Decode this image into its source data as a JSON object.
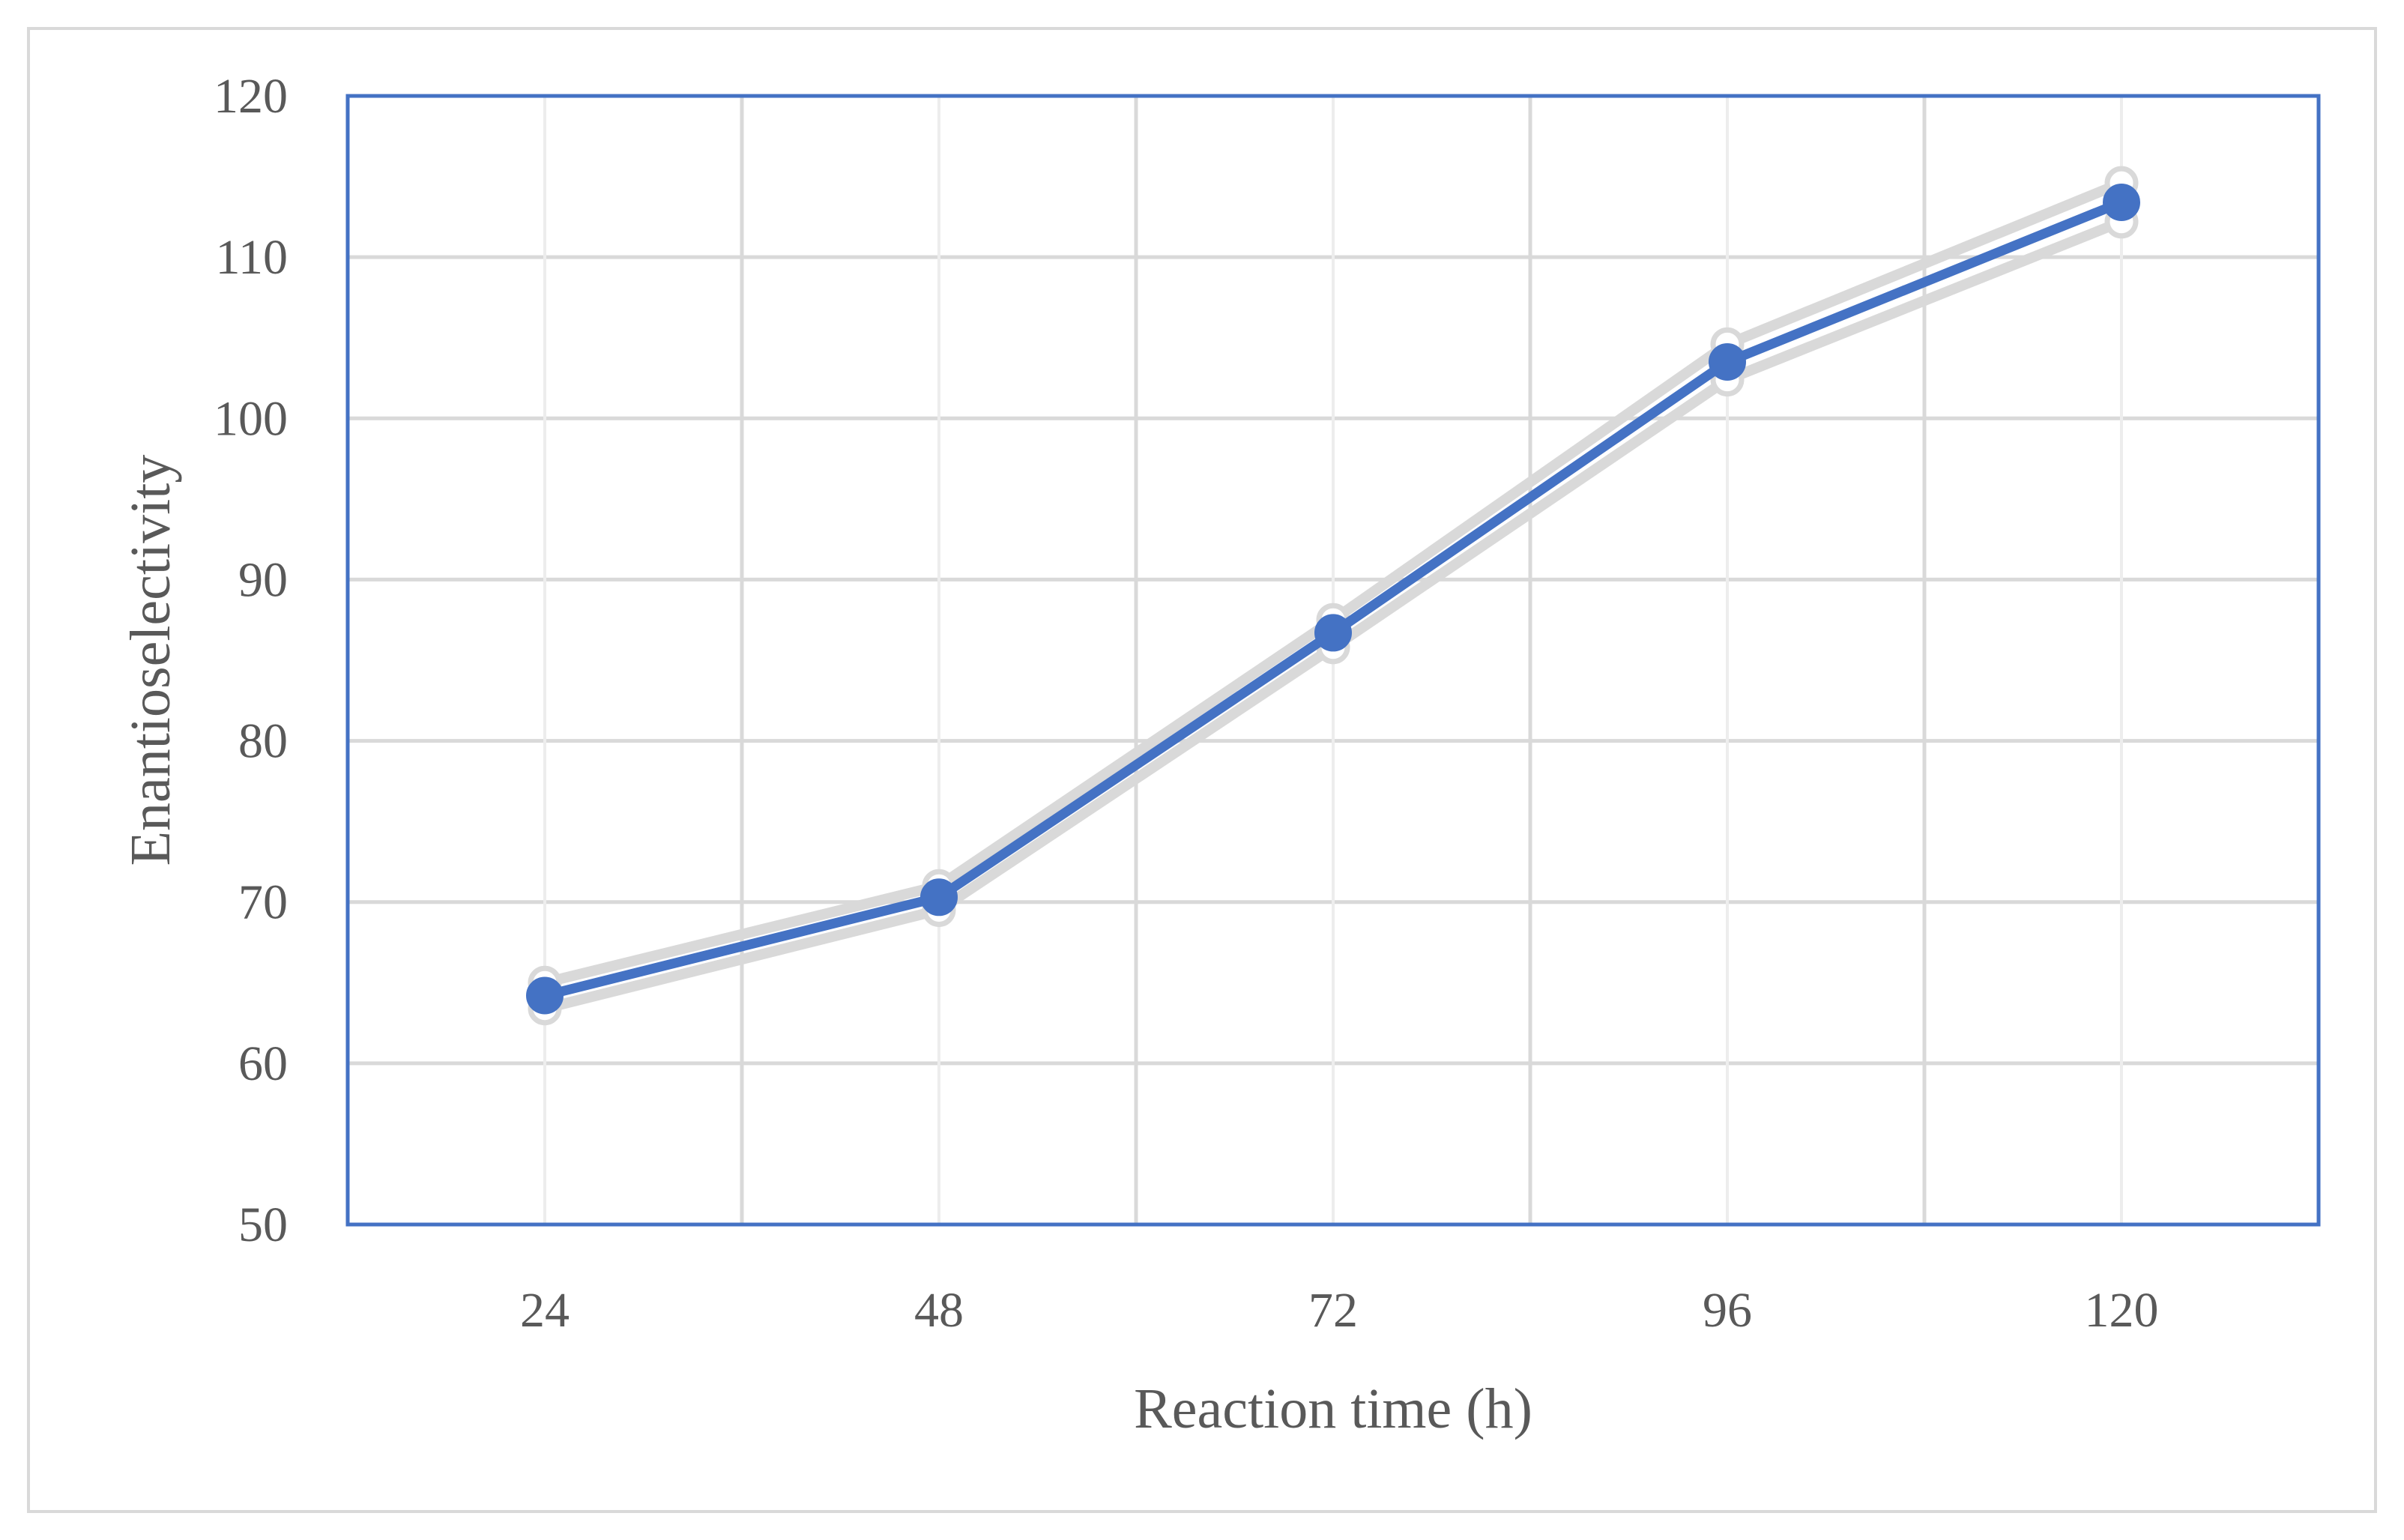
{
  "chart_data": {
    "type": "line",
    "title": "",
    "xlabel": "Reaction time (h)",
    "ylabel": "Enantioselectivity",
    "x": [
      24,
      48,
      72,
      96,
      120
    ],
    "x_tick_labels": [
      "24",
      "48",
      "72",
      "96",
      "120"
    ],
    "ylim": [
      50,
      120
    ],
    "y_ticks": [
      50,
      60,
      70,
      80,
      90,
      100,
      110,
      120
    ],
    "grid": true,
    "legend": "none",
    "series": [
      {
        "values": [
          64.2,
          70.3,
          86.7,
          103.5,
          113.4
        ],
        "color": "#4472c4",
        "marker": "circle"
      }
    ],
    "error_band": {
      "upper": [
        65.0,
        71.0,
        87.5,
        104.6,
        114.6
      ],
      "lower": [
        63.4,
        69.5,
        85.8,
        102.4,
        112.2
      ],
      "color": "#d9d9d9"
    },
    "colors": {
      "plot_border": "#4472c4",
      "grid": "#d9d9d9",
      "text": "#595959",
      "frame": "#d9d9d9"
    }
  }
}
